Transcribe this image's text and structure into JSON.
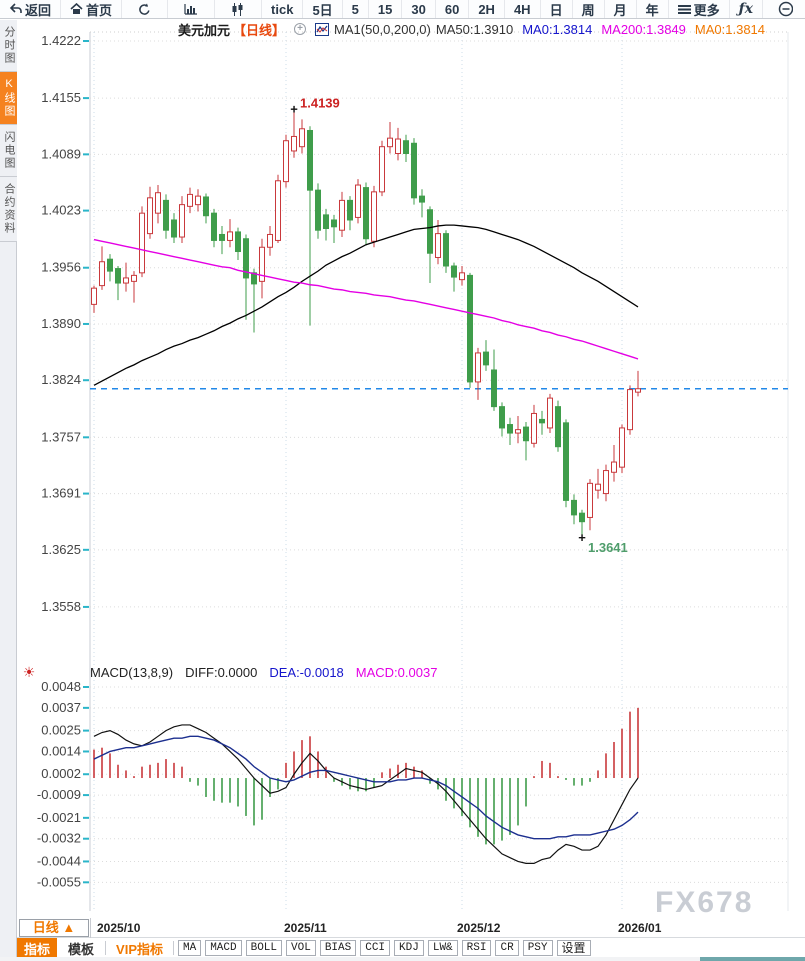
{
  "toolbar": {
    "items": [
      {
        "label": "返回",
        "icon": "back-arrow"
      },
      {
        "label": "首页",
        "icon": "home"
      },
      {
        "label": "",
        "icon": "refresh"
      },
      {
        "label": "",
        "icon": "column-chart"
      },
      {
        "label": "",
        "icon": "candle-chart"
      },
      {
        "label": "tick",
        "icon": ""
      },
      {
        "label": "5日",
        "icon": ""
      },
      {
        "label": "5",
        "icon": ""
      },
      {
        "label": "15",
        "icon": ""
      },
      {
        "label": "30",
        "icon": ""
      },
      {
        "label": "60",
        "icon": ""
      },
      {
        "label": "2H",
        "icon": ""
      },
      {
        "label": "4H",
        "icon": ""
      },
      {
        "label": "日",
        "icon": ""
      },
      {
        "label": "周",
        "icon": ""
      },
      {
        "label": "月",
        "icon": ""
      },
      {
        "label": "年",
        "icon": ""
      },
      {
        "label": "更多",
        "icon": "menu"
      },
      {
        "label": "ƒx",
        "icon": ""
      },
      {
        "label": "",
        "icon": "zoom-out"
      }
    ]
  },
  "sidebar": {
    "tabs": [
      {
        "label": "分时图",
        "active": false
      },
      {
        "label": "K线图",
        "active": true
      },
      {
        "label": "闪电图",
        "active": false
      },
      {
        "label": "合约资料",
        "active": false
      }
    ]
  },
  "main_header": {
    "symbol": "美元加元",
    "period": "【日线】",
    "plus": "+",
    "ma_def": "MA1(50,0,200,0)",
    "ma50": "MA50:1.3910",
    "ma0_blue": "MA0:1.3814",
    "ma200": "MA200:1.3849",
    "ma0_orange": "MA0:1.3814"
  },
  "macd_header": {
    "title": "MACD(13,8,9)",
    "diff": "DIFF:0.0000",
    "dea": "DEA:-0.0018",
    "macd": "MACD:0.0037",
    "settings_icon": "☀"
  },
  "period_button": {
    "label": "日线",
    "arrow": "▲"
  },
  "bottom_toolbar": {
    "tabs": [
      "指标",
      "模板"
    ],
    "vip": "VIP指标",
    "indicators": [
      "MA",
      "MACD",
      "BOLL",
      "VOL",
      "BIAS",
      "CCI",
      "KDJ",
      "LW&",
      "RSI",
      "CR",
      "PSY"
    ],
    "settings": "设置"
  },
  "watermark": "FX678",
  "colors": {
    "up": "#c9393c",
    "down": "#3f9d4b",
    "ma50": "#000000",
    "ma200": "#e400e4",
    "diff": "#111111",
    "dea": "#1c2f8f",
    "price_line": "#2188e8",
    "accent": "#f07800",
    "grid": "#dcdcdc",
    "month_grid": "#ccdcea",
    "axis_tick": "#2ab5c9",
    "high_label": "#cc2222",
    "low_label": "#4f9d6b"
  },
  "chart_data": [
    {
      "type": "candlestick",
      "title": "美元加元 日线 (USD/CAD daily)",
      "ylim": [
        1.3558,
        1.4222
      ],
      "yticks": [
        1.4222,
        1.4155,
        1.4089,
        1.4023,
        1.3956,
        1.389,
        1.3824,
        1.3757,
        1.3691,
        1.3625,
        1.3558
      ],
      "months": [
        {
          "label": "2025/10",
          "index": 0
        },
        {
          "label": "2025/11",
          "index": 24
        },
        {
          "label": "2025/12",
          "index": 46
        },
        {
          "label": "2026/01",
          "index": 66
        }
      ],
      "price_line": 1.3814,
      "high_annotation": {
        "index": 25,
        "price": 1.4139,
        "label": "1.4139"
      },
      "low_annotation": {
        "index": 61,
        "price": 1.3641,
        "label": "1.3641"
      },
      "candles": [
        [
          1.3913,
          1.3935,
          1.3903,
          1.3932
        ],
        [
          1.3935,
          1.3981,
          1.393,
          1.3963
        ],
        [
          1.3966,
          1.3972,
          1.394,
          1.3952
        ],
        [
          1.3955,
          1.3958,
          1.3918,
          1.3938
        ],
        [
          1.3938,
          1.3962,
          1.3928,
          1.3944
        ],
        [
          1.394,
          1.3952,
          1.3915,
          1.3947
        ],
        [
          1.395,
          1.4028,
          1.3945,
          1.402
        ],
        [
          1.3996,
          1.4051,
          1.399,
          1.4038
        ],
        [
          1.402,
          1.4053,
          1.4008,
          1.4044
        ],
        [
          1.4035,
          1.4042,
          1.399,
          1.4
        ],
        [
          1.4012,
          1.402,
          1.3985,
          1.3992
        ],
        [
          1.3992,
          1.404,
          1.3985,
          1.403
        ],
        [
          1.4028,
          1.405,
          1.402,
          1.4042
        ],
        [
          1.403,
          1.4048,
          1.4022,
          1.404
        ],
        [
          1.4039,
          1.4043,
          1.4008,
          1.4017
        ],
        [
          1.402,
          1.4025,
          1.398,
          1.3988
        ],
        [
          1.3995,
          1.4005,
          1.3972,
          1.3988
        ],
        [
          1.3988,
          1.4013,
          1.398,
          1.3998
        ],
        [
          1.3998,
          1.4003,
          1.3965,
          1.3975
        ],
        [
          1.399,
          1.3995,
          1.3895,
          1.3944
        ],
        [
          1.395,
          1.3955,
          1.388,
          1.3937
        ],
        [
          1.394,
          1.399,
          1.392,
          1.398
        ],
        [
          1.398,
          1.4005,
          1.397,
          1.3995
        ],
        [
          1.3988,
          1.4065,
          1.3985,
          1.4058
        ],
        [
          1.4057,
          1.4112,
          1.405,
          1.4105
        ],
        [
          1.4093,
          1.4139,
          1.4085,
          1.411
        ],
        [
          1.4098,
          1.413,
          1.409,
          1.4119
        ],
        [
          1.4117,
          1.4122,
          1.3888,
          1.4047
        ],
        [
          1.4047,
          1.4055,
          1.399,
          1.4
        ],
        [
          1.4018,
          1.4025,
          1.3988,
          1.4002
        ],
        [
          1.4012,
          1.4018,
          1.3985,
          1.4004
        ],
        [
          1.4,
          1.4045,
          1.3992,
          1.4035
        ],
        [
          1.4035,
          1.404,
          1.4,
          1.4012
        ],
        [
          1.4015,
          1.406,
          1.4008,
          1.4053
        ],
        [
          1.405,
          1.4056,
          1.3982,
          1.399
        ],
        [
          1.3987,
          1.4052,
          1.398,
          1.4045
        ],
        [
          1.4045,
          1.4105,
          1.404,
          1.4098
        ],
        [
          1.4098,
          1.4127,
          1.409,
          1.4108
        ],
        [
          1.409,
          1.412,
          1.4082,
          1.4107
        ],
        [
          1.4105,
          1.4112,
          1.408,
          1.409
        ],
        [
          1.4102,
          1.4108,
          1.403,
          1.4038
        ],
        [
          1.404,
          1.4048,
          1.4015,
          1.4033
        ],
        [
          1.4024,
          1.4028,
          1.3938,
          1.3973
        ],
        [
          1.3968,
          1.4012,
          1.396,
          1.3996
        ],
        [
          1.3996,
          1.4,
          1.395,
          1.3958
        ],
        [
          1.3958,
          1.3962,
          1.3928,
          1.3945
        ],
        [
          1.3942,
          1.3958,
          1.3935,
          1.395
        ],
        [
          1.3947,
          1.395,
          1.3815,
          1.3822
        ],
        [
          1.3822,
          1.3862,
          1.3801,
          1.3856
        ],
        [
          1.3857,
          1.3871,
          1.3835,
          1.3842
        ],
        [
          1.3836,
          1.386,
          1.3788,
          1.3793
        ],
        [
          1.3793,
          1.3798,
          1.3758,
          1.3768
        ],
        [
          1.3772,
          1.378,
          1.3748,
          1.3762
        ],
        [
          1.3762,
          1.3782,
          1.375,
          1.3766
        ],
        [
          1.3769,
          1.3775,
          1.373,
          1.3753
        ],
        [
          1.375,
          1.3795,
          1.3745,
          1.3785
        ],
        [
          1.3778,
          1.3788,
          1.376,
          1.3774
        ],
        [
          1.3768,
          1.3808,
          1.3762,
          1.3803
        ],
        [
          1.3793,
          1.38,
          1.374,
          1.3746
        ],
        [
          1.3774,
          1.3778,
          1.3675,
          1.3683
        ],
        [
          1.3683,
          1.369,
          1.3655,
          1.3666
        ],
        [
          1.3668,
          1.3672,
          1.3641,
          1.3658
        ],
        [
          1.3663,
          1.3708,
          1.3648,
          1.3703
        ],
        [
          1.3695,
          1.372,
          1.3685,
          1.3702
        ],
        [
          1.3691,
          1.3725,
          1.3682,
          1.3718
        ],
        [
          1.3716,
          1.3748,
          1.3705,
          1.3728
        ],
        [
          1.3722,
          1.3772,
          1.3715,
          1.3768
        ],
        [
          1.3766,
          1.3818,
          1.376,
          1.3813
        ],
        [
          1.381,
          1.3835,
          1.3805,
          1.3814
        ]
      ],
      "ma50": [
        1.3818,
        1.3823,
        1.3828,
        1.3833,
        1.3838,
        1.3842,
        1.3847,
        1.3851,
        1.3855,
        1.386,
        1.3864,
        1.3867,
        1.3871,
        1.3874,
        1.3878,
        1.3882,
        1.3887,
        1.3891,
        1.3896,
        1.39,
        1.3905,
        1.391,
        1.3916,
        1.3922,
        1.3927,
        1.3933,
        1.394,
        1.3946,
        1.3952,
        1.3959,
        1.3964,
        1.3969,
        1.3973,
        1.3978,
        1.3983,
        1.3986,
        1.3989,
        1.3992,
        1.3995,
        1.3998,
        1.4001,
        1.4002,
        1.4003,
        1.4005,
        1.4006,
        1.4006,
        1.4005,
        1.4004,
        1.4003,
        1.4001,
        1.3998,
        1.3995,
        1.3992,
        1.3989,
        1.3985,
        1.3981,
        1.3976,
        1.3971,
        1.3966,
        1.3961,
        1.3956,
        1.395,
        1.3945,
        1.394,
        1.3934,
        1.3928,
        1.3922,
        1.3916,
        1.391
      ],
      "ma200": [
        1.3989,
        1.3987,
        1.3985,
        1.3983,
        1.3981,
        1.3979,
        1.3977,
        1.3975,
        1.3973,
        1.3971,
        1.3969,
        1.3967,
        1.3965,
        1.3963,
        1.3961,
        1.3959,
        1.3957,
        1.3956,
        1.3953,
        1.3951,
        1.3949,
        1.3947,
        1.3945,
        1.3943,
        1.3941,
        1.3939,
        1.3938,
        1.3936,
        1.3935,
        1.3933,
        1.3931,
        1.393,
        1.3928,
        1.3927,
        1.3926,
        1.3924,
        1.3923,
        1.3922,
        1.392,
        1.3918,
        1.3917,
        1.3915,
        1.3913,
        1.3911,
        1.3909,
        1.3907,
        1.3905,
        1.3903,
        1.3901,
        1.3899,
        1.3897,
        1.3894,
        1.3892,
        1.3889,
        1.3887,
        1.3885,
        1.3882,
        1.388,
        1.3877,
        1.3875,
        1.3872,
        1.387,
        1.3867,
        1.3864,
        1.3861,
        1.3858,
        1.3855,
        1.3852,
        1.3849
      ]
    },
    {
      "type": "bar",
      "title": "MACD(13,8,9)",
      "yticks": [
        0.0048,
        0.0037,
        0.0025,
        0.0014,
        0.0002,
        -0.0009,
        -0.0021,
        -0.0032,
        -0.0044,
        -0.0055
      ],
      "hist": [
        0.0015,
        0.0016,
        0.0013,
        0.0007,
        0.0004,
        0.0001,
        0.0006,
        0.0007,
        0.0008,
        0.001,
        0.0008,
        0.0006,
        -0.0002,
        -0.0004,
        -0.001,
        -0.0012,
        -0.0013,
        -0.0013,
        -0.0015,
        -0.002,
        -0.0025,
        -0.0022,
        -0.001,
        -0.0006,
        0.0008,
        0.0014,
        0.002,
        0.0022,
        0.0014,
        0.0006,
        -0.0002,
        -0.0004,
        -0.0006,
        -0.0007,
        -0.0007,
        -0.0005,
        0.0003,
        0.0005,
        0.0007,
        0.0008,
        0.0006,
        0.0004,
        -0.0003,
        -0.0006,
        -0.0012,
        -0.0016,
        -0.002,
        -0.0026,
        -0.0031,
        -0.0035,
        -0.0035,
        -0.0033,
        -0.003,
        -0.0025,
        -0.0015,
        0.0001,
        0.0009,
        0.0008,
        0.0001,
        -0.0001,
        -0.0004,
        -0.0004,
        -0.0002,
        0.0004,
        0.0013,
        0.0019,
        0.0026,
        0.0035,
        0.0037
      ],
      "diff": [
        0.0022,
        0.0024,
        0.0025,
        0.0023,
        0.002,
        0.0018,
        0.0017,
        0.0019,
        0.0022,
        0.0025,
        0.0027,
        0.0028,
        0.0028,
        0.0026,
        0.0024,
        0.0021,
        0.0018,
        0.0014,
        0.001,
        0.0005,
        0.0,
        -0.0004,
        -0.0008,
        -0.0007,
        -0.0005,
        0.0002,
        0.0008,
        0.0013,
        0.0009,
        0.0004,
        0.0,
        -0.0002,
        -0.0004,
        -0.0005,
        -0.0006,
        -0.0005,
        -0.0004,
        -0.0001,
        0.0002,
        0.0005,
        0.0004,
        0.0003,
        0.0,
        -0.0003,
        -0.0007,
        -0.0012,
        -0.0017,
        -0.0022,
        -0.0027,
        -0.0032,
        -0.0036,
        -0.004,
        -0.0042,
        -0.0044,
        -0.0045,
        -0.0045,
        -0.0043,
        -0.0042,
        -0.0038,
        -0.0035,
        -0.0036,
        -0.0038,
        -0.0038,
        -0.0036,
        -0.003,
        -0.0022,
        -0.0014,
        -0.0006,
        0.0
      ],
      "dea": [
        0.001,
        0.0012,
        0.0014,
        0.0015,
        0.0016,
        0.0016,
        0.0017,
        0.0018,
        0.0019,
        0.002,
        0.0021,
        0.0021,
        0.0022,
        0.0022,
        0.0021,
        0.002,
        0.0018,
        0.0016,
        0.0013,
        0.001,
        0.0006,
        0.0003,
        0.0,
        -0.0001,
        -0.0002,
        -0.0001,
        0.0001,
        0.0003,
        0.0004,
        0.0004,
        0.0003,
        0.0002,
        0.0001,
        0.0,
        -0.0001,
        -0.0002,
        -0.0002,
        -0.0002,
        -0.0001,
        -0.0001,
        0.0,
        0.0,
        -0.0001,
        -0.0002,
        -0.0004,
        -0.0007,
        -0.001,
        -0.0013,
        -0.0016,
        -0.002,
        -0.0023,
        -0.0026,
        -0.0028,
        -0.003,
        -0.0031,
        -0.0032,
        -0.0032,
        -0.0032,
        -0.0031,
        -0.0031,
        -0.003,
        -0.003,
        -0.003,
        -0.0029,
        -0.0028,
        -0.0027,
        -0.0025,
        -0.0022,
        -0.0018
      ]
    }
  ]
}
